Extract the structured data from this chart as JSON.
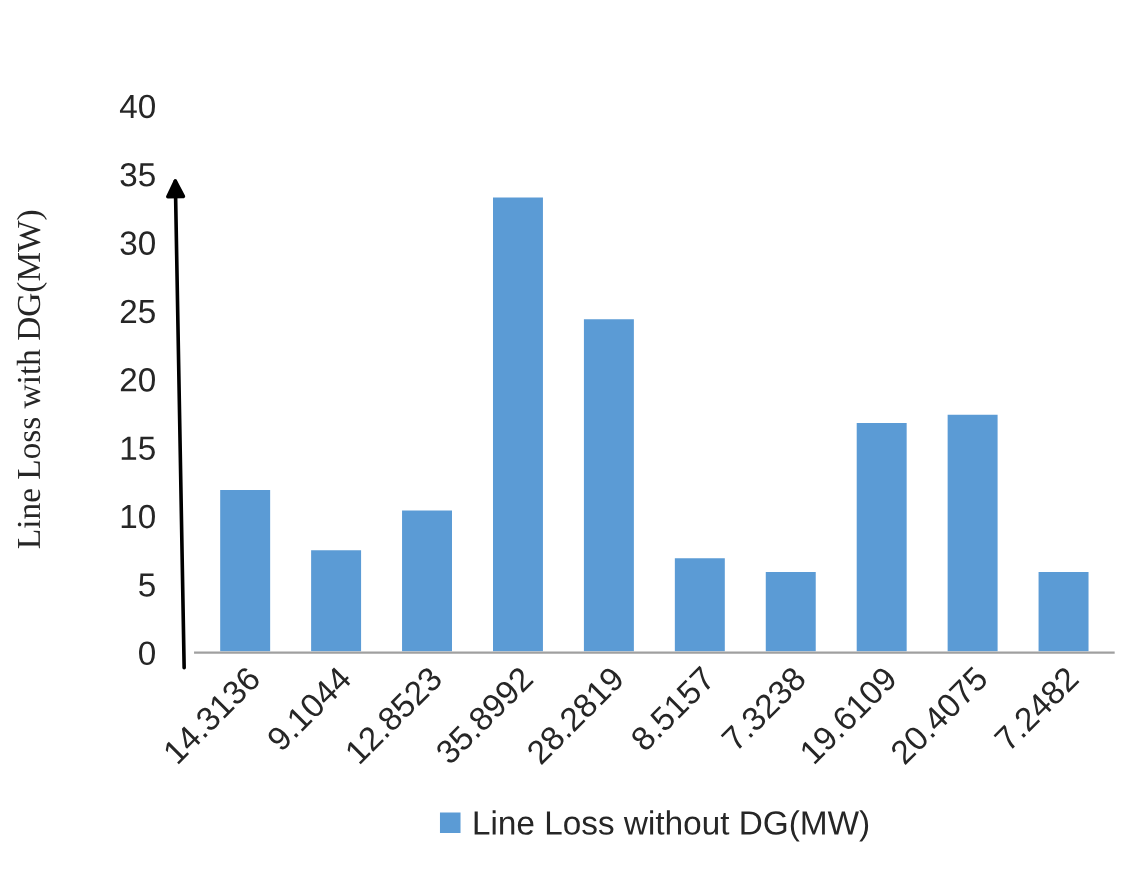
{
  "chart_data": {
    "type": "bar",
    "ylabel": "Line Loss with DG(MW)",
    "categories": [
      "14.3136",
      "9.1044",
      "12.8523",
      "35.8992",
      "28.2819",
      "8.5157",
      "7.3238",
      "19.6109",
      "20.4075",
      "7.2482"
    ],
    "series": [
      {
        "name": "Line Loss without DG(MW)",
        "color": "#5b9bd5",
        "values": [
          12.0,
          7.6,
          10.5,
          33.4,
          24.5,
          7.0,
          6.0,
          16.9,
          17.5,
          6.0
        ]
      }
    ],
    "ylim": [
      0,
      40
    ],
    "yticks": [
      0,
      5,
      10,
      15,
      20,
      25,
      30,
      35,
      40
    ],
    "grid": false,
    "legend": "bottom"
  }
}
